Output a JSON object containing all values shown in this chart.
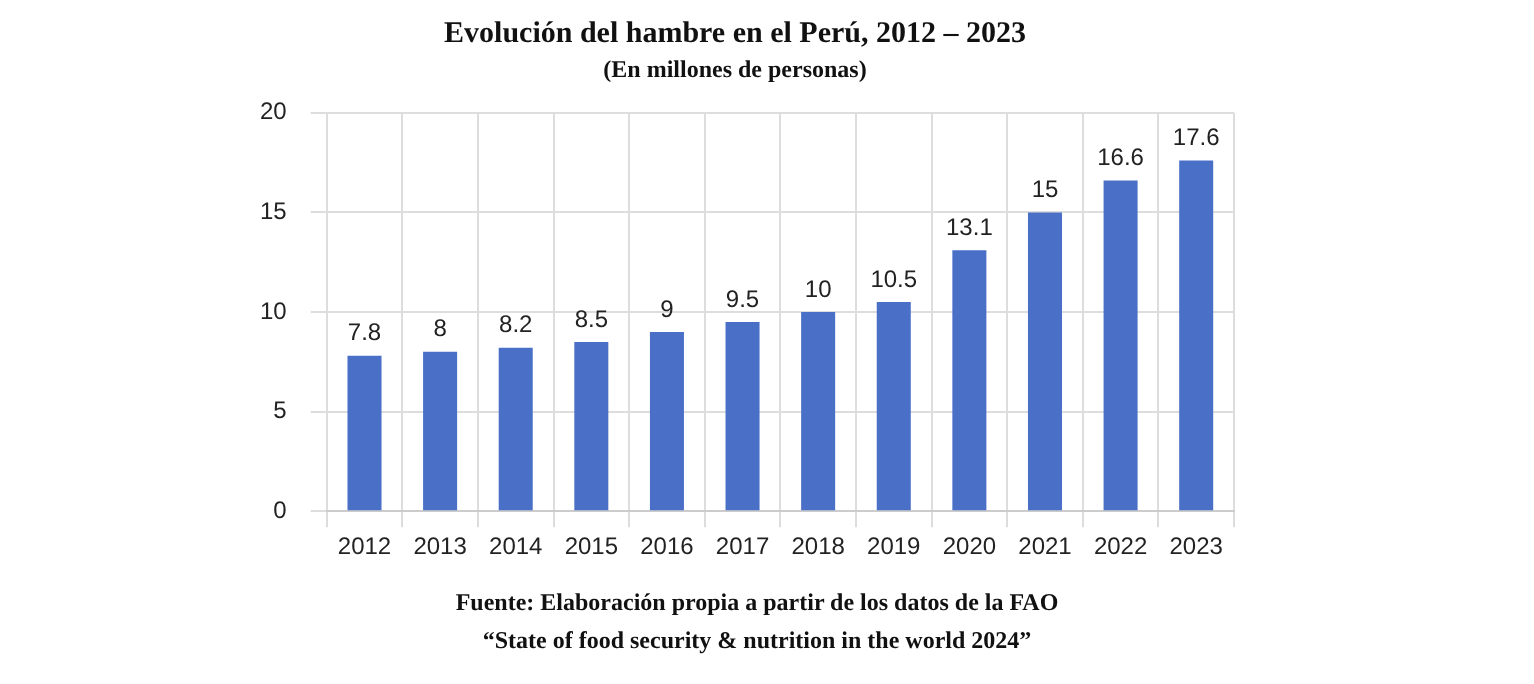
{
  "chart_data": {
    "type": "bar",
    "title": "Evolución del hambre en el Perú, 2012 – 2023",
    "subtitle": "(En millones de personas)",
    "categories": [
      "2012",
      "2013",
      "2014",
      "2015",
      "2016",
      "2017",
      "2018",
      "2019",
      "2020",
      "2021",
      "2022",
      "2023"
    ],
    "values": [
      7.8,
      8,
      8.2,
      8.5,
      9,
      9.5,
      10,
      10.5,
      13.1,
      15,
      16.6,
      17.6
    ],
    "color": "#4a6fc7",
    "ylim": [
      0,
      20
    ],
    "yticks": [
      0,
      5,
      10,
      15,
      20
    ],
    "grid": true,
    "data_labels": true,
    "annotations": [
      "Fuente: Elaboración propia a partir de los datos de la FAO",
      "“State of food security & nutrition in the world 2024”"
    ]
  }
}
